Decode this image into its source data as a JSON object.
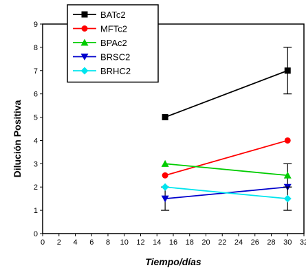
{
  "chart_data": {
    "type": "line",
    "xlabel": "Tiempo/días",
    "ylabel": "Dilución Positiva",
    "xlim": [
      0,
      32
    ],
    "ylim": [
      0,
      9
    ],
    "xticks": [
      0,
      2,
      4,
      6,
      8,
      10,
      12,
      14,
      16,
      18,
      20,
      22,
      24,
      26,
      28,
      30,
      32
    ],
    "yticks": [
      0,
      1,
      2,
      3,
      4,
      5,
      6,
      7,
      8,
      9
    ],
    "grid": false,
    "legend_position": "top-left",
    "series": [
      {
        "name": "BATc2",
        "color": "#000000",
        "marker": "square",
        "x": [
          15,
          30
        ],
        "y": [
          5,
          7
        ],
        "yerr": [
          0,
          1
        ]
      },
      {
        "name": "MFTc2",
        "color": "#ff0000",
        "marker": "circle",
        "x": [
          15,
          30
        ],
        "y": [
          2.5,
          4
        ],
        "yerr": [
          0,
          0
        ]
      },
      {
        "name": "BPAc2",
        "color": "#00cc00",
        "marker": "triangle-up",
        "x": [
          15,
          30
        ],
        "y": [
          3,
          2.5
        ],
        "yerr": [
          0,
          0.5
        ]
      },
      {
        "name": "BRSC2",
        "color": "#0000cc",
        "marker": "triangle-down",
        "x": [
          15,
          30
        ],
        "y": [
          1.5,
          2
        ],
        "yerr": [
          0.5,
          0
        ]
      },
      {
        "name": "BRHC2",
        "color": "#00e5ee",
        "marker": "diamond",
        "x": [
          15,
          30
        ],
        "y": [
          2,
          1.5
        ],
        "yerr": [
          0,
          0.5
        ]
      }
    ]
  }
}
